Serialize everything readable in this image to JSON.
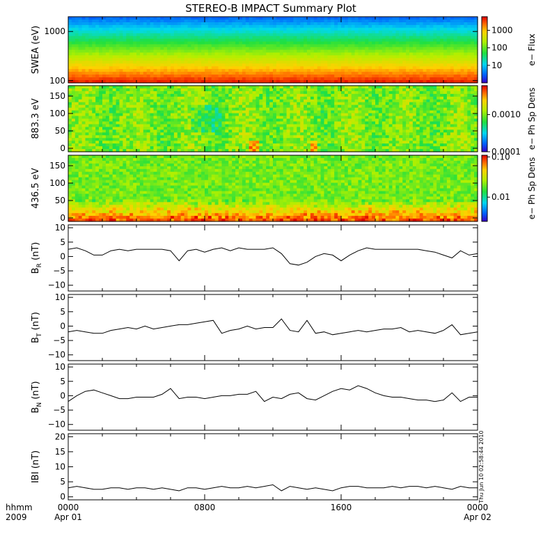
{
  "chart_data": {
    "title": "STEREO-B IMPACT Summary Plot",
    "x_axis": {
      "type": "time",
      "range_hours": [
        0,
        24
      ],
      "ticks": [
        {
          "hour": 0,
          "time": "0000",
          "date": "Apr 01"
        },
        {
          "hour": 8,
          "time": "0800",
          "date": ""
        },
        {
          "hour": 16,
          "time": "1600",
          "date": ""
        },
        {
          "hour": 24,
          "time": "0000",
          "date": "Apr 02"
        }
      ],
      "corner_label_top": "hhmm",
      "corner_label_bottom": "2009"
    },
    "timestamp": "Thu Jun 10 02:58:44 2010",
    "panels": [
      {
        "type": "heatmap",
        "ylabel": "SWEA (eV)",
        "yscale": "log",
        "ylim": [
          90,
          2000
        ],
        "yticks": [
          100,
          1000
        ],
        "ytick_labels": [
          "100",
          "1000"
        ],
        "colorbar": {
          "label": "e− Flux",
          "scale": "log",
          "range": [
            1,
            6000
          ],
          "ticks": [
            10,
            100,
            1000
          ],
          "tick_labels": [
            "10",
            "100",
            "1000"
          ]
        }
      },
      {
        "type": "heatmap",
        "ylabel": "883.3 eV",
        "yscale": "linear",
        "ylim": [
          -10,
          180
        ],
        "yticks": [
          0,
          50,
          100,
          150
        ],
        "ytick_labels": [
          "0",
          "50",
          "100",
          "150"
        ],
        "colorbar": {
          "label": "e− Ph Sp Dens",
          "scale": "log",
          "range": [
            0.0001,
            0.006
          ],
          "ticks": [
            0.0001,
            0.001
          ],
          "tick_labels": [
            "0.0001",
            "0.0010"
          ]
        }
      },
      {
        "type": "heatmap",
        "ylabel": "436.5 eV",
        "yscale": "linear",
        "ylim": [
          -10,
          180
        ],
        "yticks": [
          0,
          50,
          100,
          150
        ],
        "ytick_labels": [
          "0",
          "50",
          "100",
          "150"
        ],
        "colorbar": {
          "label": "e− Ph Sp Dens",
          "scale": "log",
          "range": [
            0.0025,
            0.11
          ],
          "ticks": [
            0.01,
            0.1
          ],
          "tick_labels": [
            "0.01",
            "0.10"
          ]
        }
      },
      {
        "type": "line",
        "ylabel": "B",
        "ylabel_sub": "R",
        "ylabel_unit": " (nT)",
        "ylim": [
          -12,
          11
        ],
        "yticks": [
          -10,
          -5,
          0,
          5,
          10
        ],
        "ytick_labels": [
          "−10",
          "−5",
          "0",
          "5",
          "10"
        ],
        "x": [
          0,
          0.5,
          1,
          1.5,
          2,
          2.5,
          3,
          3.5,
          4,
          4.5,
          5,
          5.5,
          6,
          6.5,
          7,
          7.5,
          8,
          8.5,
          9,
          9.5,
          10,
          10.5,
          11,
          11.5,
          12,
          12.5,
          13,
          13.5,
          14,
          14.5,
          15,
          15.5,
          16,
          16.5,
          17,
          17.5,
          18,
          18.5,
          19,
          19.5,
          20,
          20.5,
          21,
          21.5,
          22,
          22.5,
          23,
          23.5,
          24
        ],
        "y": [
          2.5,
          3,
          2,
          0.5,
          0.5,
          2,
          2.5,
          2,
          2.5,
          2.5,
          2.5,
          2.5,
          2,
          -1.5,
          2,
          2.5,
          1.5,
          2.5,
          3,
          2,
          3,
          2.5,
          2.5,
          2.5,
          3,
          1,
          -2.5,
          -3,
          -2,
          0,
          1,
          0.5,
          -1.5,
          0.5,
          2,
          3,
          2.5,
          2.5,
          2.5,
          2.5,
          2.5,
          2.5,
          2,
          1.5,
          0.5,
          -0.5,
          2,
          0.5,
          1
        ]
      },
      {
        "type": "line",
        "ylabel": "B",
        "ylabel_sub": "T",
        "ylabel_unit": " (nT)",
        "ylim": [
          -12,
          11
        ],
        "yticks": [
          -10,
          -5,
          0,
          5,
          10
        ],
        "ytick_labels": [
          "−10",
          "−5",
          "0",
          "5",
          "10"
        ],
        "x": [
          0,
          0.5,
          1,
          1.5,
          2,
          2.5,
          3,
          3.5,
          4,
          4.5,
          5,
          5.5,
          6,
          6.5,
          7,
          7.5,
          8,
          8.5,
          9,
          9.5,
          10,
          10.5,
          11,
          11.5,
          12,
          12.5,
          13,
          13.5,
          14,
          14.5,
          15,
          15.5,
          16,
          16.5,
          17,
          17.5,
          18,
          18.5,
          19,
          19.5,
          20,
          20.5,
          21,
          21.5,
          22,
          22.5,
          23,
          23.5,
          24
        ],
        "y": [
          -2,
          -1.5,
          -2,
          -2.5,
          -2.5,
          -1.5,
          -1,
          -0.5,
          -1,
          0,
          -1,
          -0.5,
          0,
          0.5,
          0.5,
          1,
          1.5,
          2,
          -2.5,
          -1.5,
          -1,
          0,
          -1,
          -0.5,
          -0.5,
          2.5,
          -1.5,
          -2,
          2,
          -2.5,
          -2,
          -3,
          -2.5,
          -2,
          -1.5,
          -2,
          -1.5,
          -1,
          -1,
          -0.5,
          -2,
          -1.5,
          -2,
          -2.5,
          -1.5,
          0.5,
          -3,
          -2.5,
          -2
        ]
      },
      {
        "type": "line",
        "ylabel": "B",
        "ylabel_sub": "N",
        "ylabel_unit": " (nT)",
        "ylim": [
          -12,
          11
        ],
        "yticks": [
          -10,
          -5,
          0,
          5,
          10
        ],
        "ytick_labels": [
          "−10",
          "−5",
          "0",
          "5",
          "10"
        ],
        "x": [
          0,
          0.5,
          1,
          1.5,
          2,
          2.5,
          3,
          3.5,
          4,
          4.5,
          5,
          5.5,
          6,
          6.5,
          7,
          7.5,
          8,
          8.5,
          9,
          9.5,
          10,
          10.5,
          11,
          11.5,
          12,
          12.5,
          13,
          13.5,
          14,
          14.5,
          15,
          15.5,
          16,
          16.5,
          17,
          17.5,
          18,
          18.5,
          19,
          19.5,
          20,
          20.5,
          21,
          21.5,
          22,
          22.5,
          23,
          23.5,
          24
        ],
        "y": [
          -2,
          0,
          1.5,
          2,
          1,
          0,
          -1,
          -1,
          -0.5,
          -0.5,
          -0.5,
          0.5,
          2.5,
          -1,
          -0.5,
          -0.5,
          -1,
          -0.5,
          0,
          0,
          0.5,
          0.5,
          1.5,
          -2,
          -0.5,
          -1,
          0.5,
          1,
          -1,
          -1.5,
          0,
          1.5,
          2.5,
          2,
          3.5,
          2.5,
          1,
          0,
          -0.5,
          -0.5,
          -1,
          -1.5,
          -1.5,
          -2,
          -1.5,
          1,
          -2,
          -0.5,
          -0.5
        ]
      },
      {
        "type": "line",
        "ylabel": "IBI",
        "ylabel_sub": "",
        "ylabel_unit": " (nT)",
        "ylim": [
          -1,
          21
        ],
        "yticks": [
          0,
          5,
          10,
          15,
          20
        ],
        "ytick_labels": [
          "0",
          "5",
          "10",
          "15",
          "20"
        ],
        "x": [
          0,
          0.5,
          1,
          1.5,
          2,
          2.5,
          3,
          3.5,
          4,
          4.5,
          5,
          5.5,
          6,
          6.5,
          7,
          7.5,
          8,
          8.5,
          9,
          9.5,
          10,
          10.5,
          11,
          11.5,
          12,
          12.5,
          13,
          13.5,
          14,
          14.5,
          15,
          15.5,
          16,
          16.5,
          17,
          17.5,
          18,
          18.5,
          19,
          19.5,
          20,
          20.5,
          21,
          21.5,
          22,
          22.5,
          23,
          23.5,
          24
        ],
        "y": [
          3,
          3.5,
          3,
          2.5,
          2.5,
          3,
          3,
          2.5,
          3,
          3,
          2.5,
          3,
          2.5,
          2,
          3,
          3,
          2.5,
          3,
          3.5,
          3,
          3,
          3.5,
          3,
          3.5,
          4,
          2,
          3.5,
          3,
          2.5,
          3,
          2.5,
          2,
          3,
          3.5,
          3.5,
          3,
          3,
          3,
          3.5,
          3,
          3.5,
          3.5,
          3,
          3.5,
          3,
          2.5,
          3.5,
          3,
          3
        ]
      }
    ]
  }
}
